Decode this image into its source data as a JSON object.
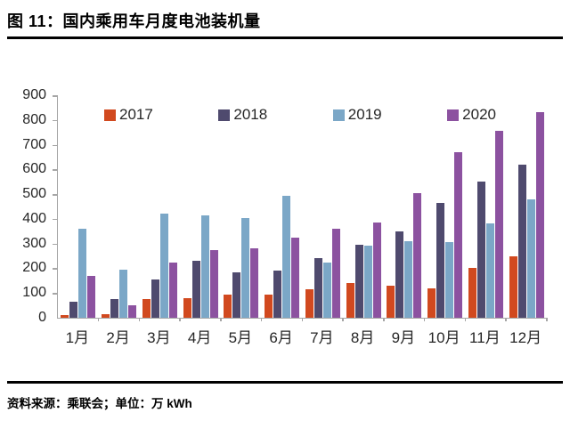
{
  "title": "图 11：国内乘用车月度电池装机量",
  "footer": {
    "source": "资料来源：乘联会；单位：万 kWh"
  },
  "chart_data": {
    "type": "bar",
    "title": "国内乘用车月度电池装机量",
    "xlabel": "",
    "ylabel": "万 kWh",
    "categories": [
      "1月",
      "2月",
      "3月",
      "4月",
      "5月",
      "6月",
      "7月",
      "8月",
      "9月",
      "10月",
      "11月",
      "12月"
    ],
    "series": [
      {
        "name": "2017",
        "color": "#d1491f",
        "values": [
          10,
          15,
          75,
          80,
          95,
          95,
          115,
          140,
          130,
          120,
          200,
          250
        ]
      },
      {
        "name": "2018",
        "color": "#4f4a6e",
        "values": [
          65,
          75,
          155,
          230,
          185,
          190,
          240,
          295,
          350,
          465,
          550,
          620
        ]
      },
      {
        "name": "2019",
        "color": "#7ba7c7",
        "values": [
          360,
          195,
          420,
          415,
          405,
          495,
          225,
          290,
          310,
          305,
          380,
          480
        ]
      },
      {
        "name": "2020",
        "color": "#8c52a0",
        "values": [
          170,
          50,
          225,
          275,
          280,
          325,
          360,
          385,
          505,
          670,
          755,
          830
        ]
      }
    ],
    "ylim": [
      0,
      900
    ],
    "yticks": [
      0,
      100,
      200,
      300,
      400,
      500,
      600,
      700,
      800,
      900
    ],
    "grid": false,
    "legend_position": "top-inside",
    "axis_color": "#a6a6a6"
  }
}
